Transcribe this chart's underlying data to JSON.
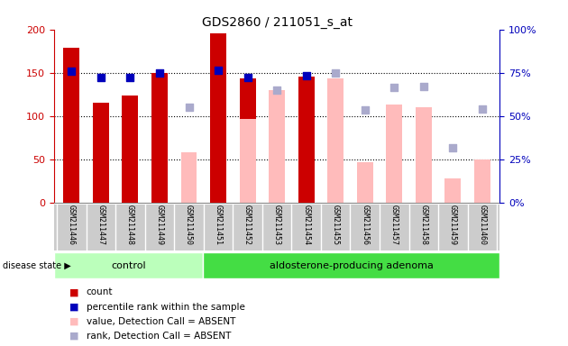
{
  "title": "GDS2860 / 211051_s_at",
  "samples": [
    "GSM211446",
    "GSM211447",
    "GSM211448",
    "GSM211449",
    "GSM211450",
    "GSM211451",
    "GSM211452",
    "GSM211453",
    "GSM211454",
    "GSM211455",
    "GSM211456",
    "GSM211457",
    "GSM211458",
    "GSM211459",
    "GSM211460"
  ],
  "control_count": 5,
  "red_bars": [
    179,
    115,
    124,
    150,
    null,
    195,
    143,
    null,
    145,
    null,
    null,
    null,
    null,
    null,
    null
  ],
  "blue_squares_left_val": [
    152,
    144,
    144,
    150,
    null,
    153,
    144,
    null,
    146,
    null,
    null,
    null,
    null,
    null,
    null
  ],
  "pink_bars": [
    null,
    null,
    null,
    null,
    58,
    null,
    97,
    130,
    null,
    143,
    47,
    113,
    110,
    28,
    50
  ],
  "lavender_squares_left_val": [
    null,
    null,
    null,
    null,
    110,
    null,
    null,
    130,
    null,
    150,
    107,
    133,
    134,
    63,
    108
  ],
  "ylim_left": [
    0,
    200
  ],
  "ylim_right": [
    0,
    100
  ],
  "yticks_left": [
    0,
    50,
    100,
    150,
    200
  ],
  "yticks_right": [
    0,
    25,
    50,
    75,
    100
  ],
  "ytick_labels_right": [
    "0%",
    "25%",
    "50%",
    "75%",
    "100%"
  ],
  "red_color": "#cc0000",
  "blue_color": "#0000bb",
  "pink_color": "#ffbbbb",
  "lavender_color": "#aaaacc",
  "green_light": "#bbffbb",
  "green_dark": "#44dd44",
  "bg_color": "#cccccc",
  "bar_width": 0.55,
  "square_size": 40
}
